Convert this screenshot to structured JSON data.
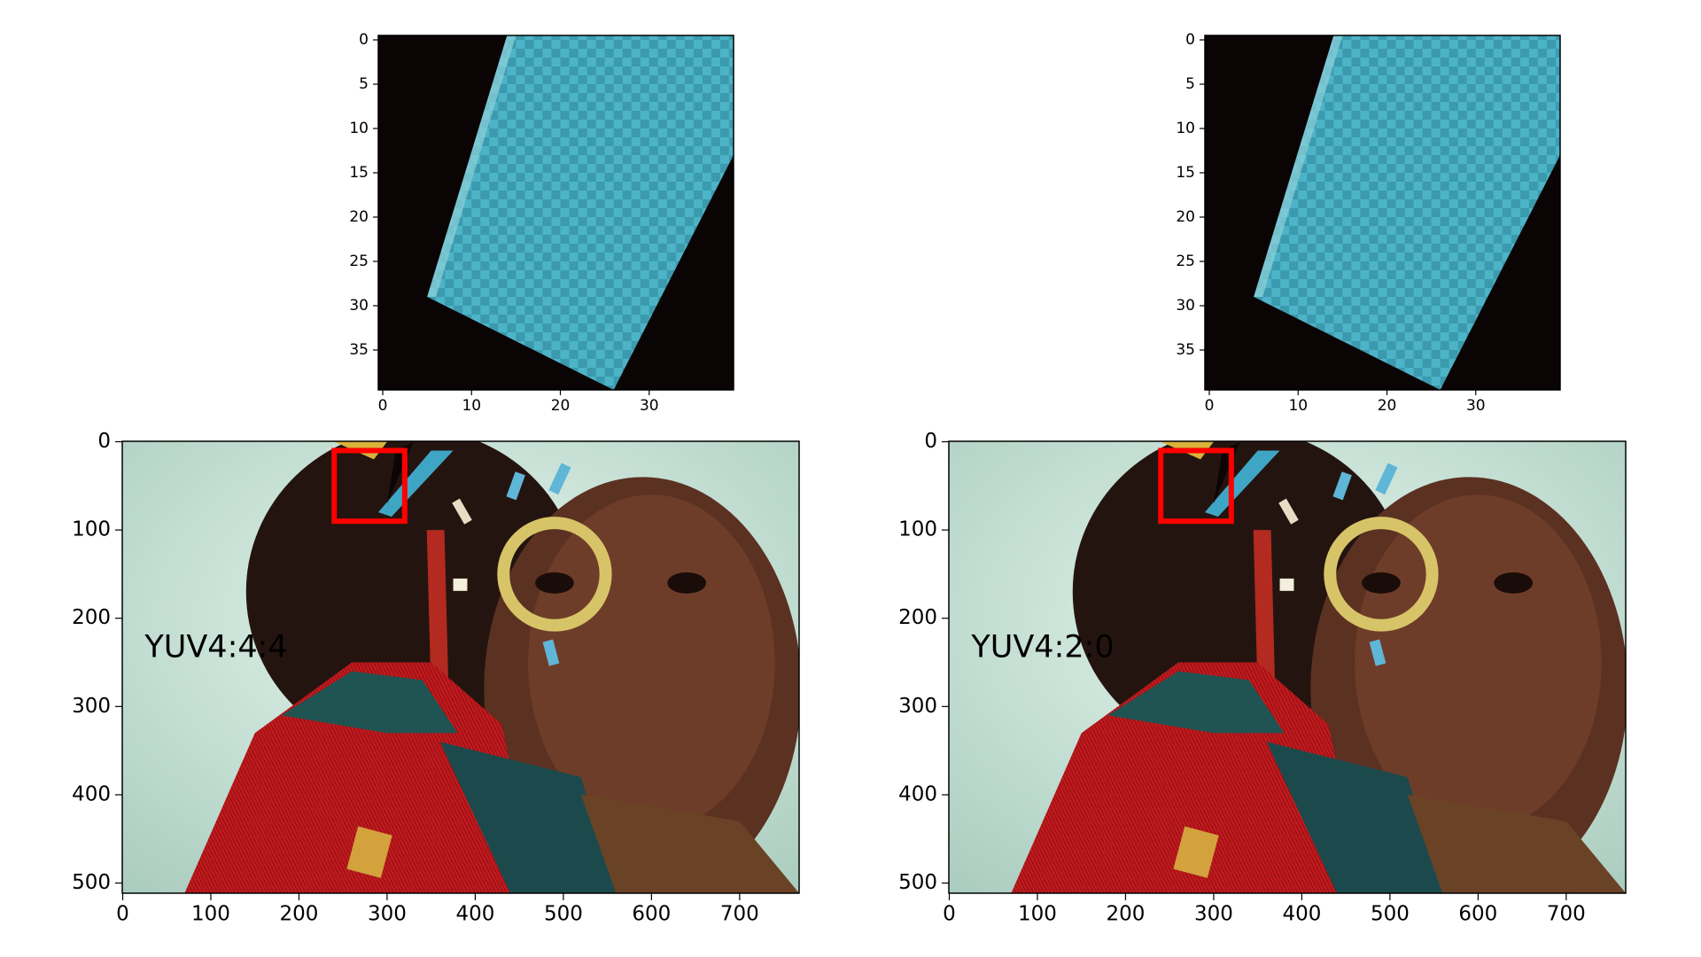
{
  "chart_data": [
    {
      "type": "image",
      "xlim": [
        -0.5,
        39.5
      ],
      "ylim": [
        39.5,
        -0.5
      ],
      "xticks": [
        0,
        10,
        20,
        30
      ],
      "yticks": [
        0,
        5,
        10,
        15,
        20,
        25,
        30,
        35
      ]
    },
    {
      "type": "image",
      "xlim": [
        -0.5,
        39.5
      ],
      "ylim": [
        39.5,
        -0.5
      ],
      "xticks": [
        0,
        10,
        20,
        30
      ],
      "yticks": [
        0,
        5,
        10,
        15,
        20,
        25,
        30,
        35
      ]
    },
    {
      "type": "image",
      "xlim": [
        -0.5,
        767.5
      ],
      "ylim": [
        511.5,
        -0.5
      ],
      "xticks": [
        0,
        100,
        200,
        300,
        400,
        500,
        600,
        700
      ],
      "yticks": [
        0,
        100,
        200,
        300,
        400,
        500
      ],
      "annotation": "YUV4:4:4",
      "highlight_box": {
        "x": [
          240,
          320
        ],
        "y": [
          10,
          90
        ]
      }
    },
    {
      "type": "image",
      "xlim": [
        -0.5,
        767.5
      ],
      "ylim": [
        511.5,
        -0.5
      ],
      "xticks": [
        0,
        100,
        200,
        300,
        400,
        500,
        600,
        700
      ],
      "yticks": [
        0,
        100,
        200,
        300,
        400,
        500
      ],
      "annotation": "YUV4:2:0",
      "highlight_box": {
        "x": [
          240,
          320
        ],
        "y": [
          10,
          90
        ]
      }
    }
  ]
}
